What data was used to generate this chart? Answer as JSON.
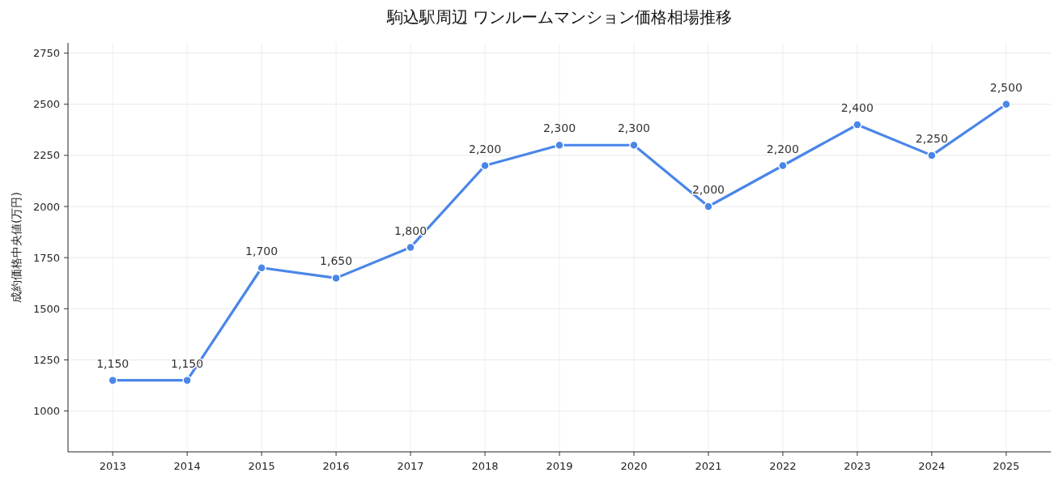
{
  "chart_data": {
    "type": "line",
    "title": "駒込駅周辺 ワンルームマンション価格相場推移",
    "ylabel": "成約価格中央値(万円)",
    "categories": [
      "2013",
      "2014",
      "2015",
      "2016",
      "2017",
      "2018",
      "2019",
      "2020",
      "2021",
      "2022",
      "2023",
      "2024",
      "2025"
    ],
    "series": [
      {
        "color": "#4a86e8",
        "values": [
          1150,
          1150,
          1700,
          1650,
          1800,
          2200,
          2300,
          2300,
          2000,
          2200,
          2400,
          2250,
          2500
        ],
        "value_labels": [
          "1,150",
          "1,150",
          "1,700",
          "1,650",
          "1,800",
          "2,200",
          "2,300",
          "2,300",
          "2,000",
          "2,200",
          "2,400",
          "2,250",
          "2,500"
        ]
      }
    ],
    "ylim": [
      800,
      2800
    ],
    "yticks": [
      1000,
      1250,
      1500,
      1750,
      2000,
      2250,
      2500,
      2750
    ],
    "grid": true,
    "marker": "circle",
    "line_style": "solid"
  }
}
